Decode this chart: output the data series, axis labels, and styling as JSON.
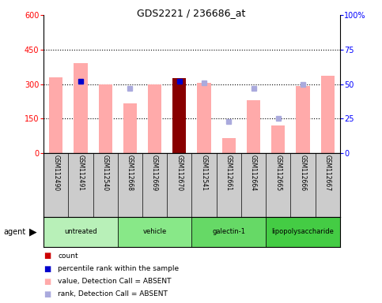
{
  "title": "GDS2221 / 236686_at",
  "samples": [
    "GSM112490",
    "GSM112491",
    "GSM112540",
    "GSM112668",
    "GSM112669",
    "GSM112670",
    "GSM112541",
    "GSM112661",
    "GSM112664",
    "GSM112665",
    "GSM112666",
    "GSM112667"
  ],
  "values": [
    330,
    390,
    300,
    215,
    300,
    325,
    305,
    65,
    230,
    120,
    290,
    335
  ],
  "ranks_right": [
    null,
    52,
    null,
    47,
    null,
    52,
    51,
    23,
    47,
    25,
    50,
    null
  ],
  "rank_is_blue": [
    false,
    true,
    false,
    false,
    false,
    true,
    false,
    false,
    false,
    false,
    false,
    false
  ],
  "is_count": [
    false,
    false,
    false,
    false,
    false,
    true,
    false,
    false,
    false,
    false,
    false,
    false
  ],
  "groups": [
    {
      "label": "untreated",
      "start": 0,
      "end": 2,
      "color": "#b8f0b8"
    },
    {
      "label": "vehicle",
      "start": 3,
      "end": 5,
      "color": "#88e888"
    },
    {
      "label": "galectin-1",
      "start": 6,
      "end": 8,
      "color": "#66d966"
    },
    {
      "label": "lipopolysaccharide",
      "start": 9,
      "end": 11,
      "color": "#44cc44"
    }
  ],
  "ylim_left": [
    0,
    600
  ],
  "yticks_left": [
    0,
    150,
    300,
    450,
    600
  ],
  "ylim_right": [
    0,
    100
  ],
  "yticks_right": [
    0,
    25,
    50,
    75,
    100
  ],
  "yticklabels_right": [
    "0",
    "25",
    "50",
    "75",
    "100%"
  ],
  "bar_color_absent": "#ffaaaa",
  "bar_color_count": "#880000",
  "rank_color_absent": "#aaaadd",
  "rank_color_blue": "#0000cc",
  "legend_items": [
    {
      "color": "#cc0000",
      "label": "count"
    },
    {
      "color": "#0000cc",
      "label": "percentile rank within the sample"
    },
    {
      "color": "#ffaaaa",
      "label": "value, Detection Call = ABSENT"
    },
    {
      "color": "#aaaadd",
      "label": "rank, Detection Call = ABSENT"
    }
  ]
}
